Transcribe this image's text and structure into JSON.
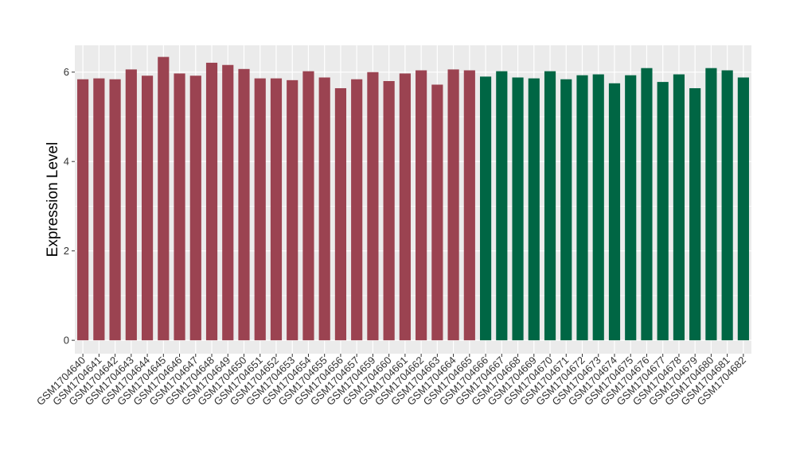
{
  "chart_data": {
    "type": "bar",
    "ylabel": "Expression Level",
    "xlabel": "",
    "ylim": [
      -0.3,
      6.6
    ],
    "yticks": [
      0,
      2,
      4,
      6
    ],
    "grid": true,
    "panel_background": "#ebebeb",
    "grid_color": "#ffffff",
    "categories": [
      "GSM1704640",
      "GSM1704641",
      "GSM1704642",
      "GSM1704643",
      "GSM1704644",
      "GSM1704645",
      "GSM1704646",
      "GSM1704647",
      "GSM1704648",
      "GSM1704649",
      "GSM1704650",
      "GSM1704651",
      "GSM1704652",
      "GSM1704653",
      "GSM1704654",
      "GSM1704655",
      "GSM1704656",
      "GSM1704657",
      "GSM1704659",
      "GSM1704660",
      "GSM1704661",
      "GSM1704662",
      "GSM1704663",
      "GSM1704664",
      "GSM1704665",
      "GSM1704666",
      "GSM1704667",
      "GSM1704668",
      "GSM1704669",
      "GSM1704670",
      "GSM1704671",
      "GSM1704672",
      "GSM1704673",
      "GSM1704674",
      "GSM1704675",
      "GSM1704676",
      "GSM1704677",
      "GSM1704678",
      "GSM1704679",
      "GSM1704680",
      "GSM1704681",
      "GSM1704682"
    ],
    "values": [
      5.84,
      5.86,
      5.84,
      6.06,
      5.92,
      6.34,
      5.97,
      5.92,
      6.21,
      6.16,
      6.07,
      5.86,
      5.86,
      5.82,
      6.02,
      5.88,
      5.64,
      5.84,
      6.0,
      5.8,
      5.97,
      6.04,
      5.72,
      6.06,
      6.04,
      5.9,
      6.02,
      5.88,
      5.86,
      6.02,
      5.84,
      5.93,
      5.95,
      5.75,
      5.93,
      6.09,
      5.78,
      5.95,
      5.64,
      6.09,
      6.04,
      5.88
    ],
    "colors": [
      "#9b4351",
      "#9b4351",
      "#9b4351",
      "#9b4351",
      "#9b4351",
      "#9b4351",
      "#9b4351",
      "#9b4351",
      "#9b4351",
      "#9b4351",
      "#9b4351",
      "#9b4351",
      "#9b4351",
      "#9b4351",
      "#9b4351",
      "#9b4351",
      "#9b4351",
      "#9b4351",
      "#9b4351",
      "#9b4351",
      "#9b4351",
      "#9b4351",
      "#9b4351",
      "#9b4351",
      "#9b4351",
      "#006644",
      "#006644",
      "#006644",
      "#006644",
      "#006644",
      "#006644",
      "#006644",
      "#006644",
      "#006644",
      "#006644",
      "#006644",
      "#006644",
      "#006644",
      "#006644",
      "#006644",
      "#006644",
      "#006644"
    ]
  }
}
